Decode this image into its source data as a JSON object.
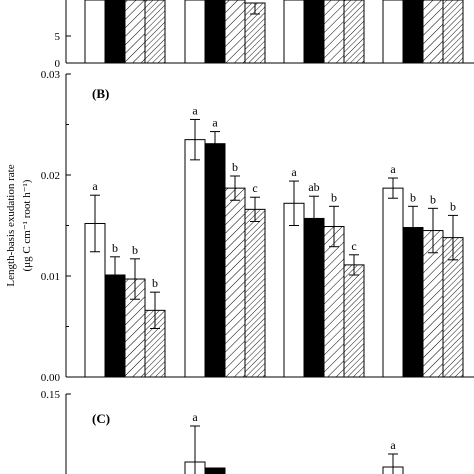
{
  "chart_data": [
    {
      "panel": "A",
      "type": "bar",
      "yticks": [
        "5",
        "0"
      ],
      "note": "cropped at top; only lower portion visible"
    },
    {
      "panel": "B",
      "type": "bar",
      "panel_label": "(B)",
      "ylabel_line1": "Length-basis exudation rate",
      "ylabel_line2": "(μg C cm⁻¹ root h⁻¹)",
      "ylim": [
        0,
        0.03
      ],
      "yticks": [
        "0.03",
        "0.02",
        "0.01",
        "0.00"
      ],
      "series_styles": [
        "white",
        "black",
        "hatch-diagonal",
        "hatch-dense"
      ],
      "groups": [
        {
          "values": [
            0.0152,
            0.0101,
            0.0097,
            0.0066
          ],
          "errors": [
            0.0028,
            0.0018,
            0.002,
            0.0018
          ],
          "labels": [
            "a",
            "b",
            "b",
            "b"
          ]
        },
        {
          "values": [
            0.0235,
            0.0231,
            0.0187,
            0.0166
          ],
          "errors": [
            0.002,
            0.0012,
            0.0012,
            0.0012
          ],
          "labels": [
            "a",
            "a",
            "b",
            "c"
          ]
        },
        {
          "values": [
            0.0172,
            0.0157,
            0.0149,
            0.0111
          ],
          "errors": [
            0.0022,
            0.0022,
            0.002,
            0.001
          ],
          "labels": [
            "a",
            "ab",
            "b",
            "c"
          ]
        },
        {
          "values": [
            0.0187,
            0.0148,
            0.0145,
            0.0138
          ],
          "errors": [
            0.001,
            0.0021,
            0.0022,
            0.0022
          ],
          "labels": [
            "a",
            "b",
            "b",
            "b"
          ]
        }
      ]
    },
    {
      "panel": "C",
      "type": "bar",
      "panel_label": "(C)",
      "yticks": [
        "0.15"
      ],
      "note": "cropped at bottom; only top portion visible",
      "visible_labels": [
        "a",
        "a"
      ]
    }
  ]
}
